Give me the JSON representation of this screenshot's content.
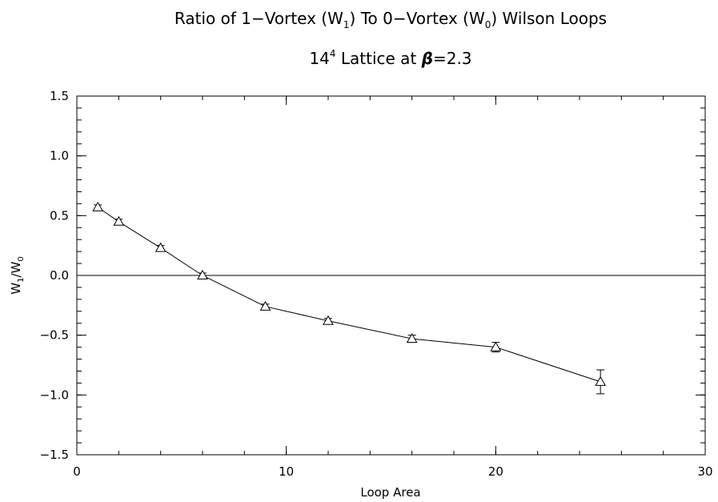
{
  "chart_data": {
    "type": "line",
    "title": {
      "pre": "Ratio of 1−Vortex (W",
      "sub1": "1",
      "mid": ") To 0−Vortex (W",
      "sub2": "0",
      "post": ") Wilson Loops"
    },
    "subtitle": {
      "pre": "14",
      "sup": "4",
      "mid": " Lattice at ",
      "beta": "β",
      "post": "=2.3"
    },
    "xlabel": "Loop Area",
    "ylabel": {
      "a": "W",
      "a_sub": "1",
      "slash": "/W",
      "b_sub": "0"
    },
    "xlim": [
      0,
      30
    ],
    "ylim": [
      -1.5,
      1.5
    ],
    "xticks": [
      {
        "value": 0,
        "label": "0"
      },
      {
        "value": 10,
        "label": "10"
      },
      {
        "value": 20,
        "label": "20"
      },
      {
        "value": 30,
        "label": "30"
      }
    ],
    "yticks": [
      {
        "value": -1.5,
        "label": "−1.5"
      },
      {
        "value": -1.0,
        "label": "−1.0"
      },
      {
        "value": -0.5,
        "label": "−0.5"
      },
      {
        "value": 0.0,
        "label": "0.0"
      },
      {
        "value": 0.5,
        "label": "0.5"
      },
      {
        "value": 1.0,
        "label": "1.0"
      },
      {
        "value": 1.5,
        "label": "1.5"
      }
    ],
    "x_minor_step": 2,
    "y_minor_step": 0.1,
    "zero_line": true,
    "grid": false,
    "marker": "triangle",
    "series": [
      {
        "x": [
          1,
          2,
          4,
          6,
          9,
          12,
          16,
          20,
          25
        ],
        "y": [
          0.57,
          0.45,
          0.23,
          0.0,
          -0.26,
          -0.38,
          -0.53,
          -0.6,
          -0.89
        ],
        "yerr": [
          0.02,
          0.02,
          0.02,
          0.02,
          0.02,
          0.02,
          0.03,
          0.04,
          0.1
        ]
      }
    ]
  }
}
